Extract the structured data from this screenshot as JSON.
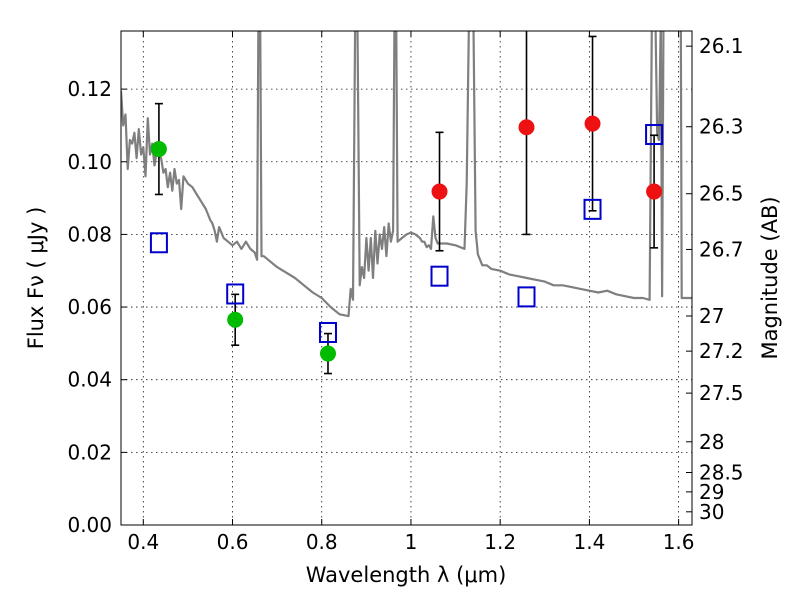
{
  "chart_data": {
    "type": "scatter",
    "xlabel": "Wavelength  λ (μm)",
    "ylabel": "Flux  Fν  ( μJy )",
    "ylabel_right": "Magnitude (AB)",
    "xlim": [
      0.35,
      1.63
    ],
    "ylim": [
      0.0,
      0.136
    ],
    "grid": true,
    "x_ticks": [
      {
        "value": 0.4,
        "label": "0.4"
      },
      {
        "value": 0.6,
        "label": "0.6"
      },
      {
        "value": 0.8,
        "label": "0.8"
      },
      {
        "value": 1.0,
        "label": "1"
      },
      {
        "value": 1.2,
        "label": "1.2"
      },
      {
        "value": 1.4,
        "label": "1.4"
      },
      {
        "value": 1.6,
        "label": "1.6"
      }
    ],
    "y_ticks": [
      {
        "value": 0.0,
        "label": "0.00"
      },
      {
        "value": 0.02,
        "label": "0.02"
      },
      {
        "value": 0.04,
        "label": "0.04"
      },
      {
        "value": 0.06,
        "label": "0.06"
      },
      {
        "value": 0.08,
        "label": "0.08"
      },
      {
        "value": 0.1,
        "label": "0.10"
      },
      {
        "value": 0.12,
        "label": "0.12"
      }
    ],
    "mag_ticks": [
      {
        "value": 26.1,
        "label": "26.1"
      },
      {
        "value": 26.3,
        "label": "26.3"
      },
      {
        "value": 26.5,
        "label": "26.5"
      },
      {
        "value": 26.7,
        "label": "26.7"
      },
      {
        "value": 27.0,
        "label": "27"
      },
      {
        "value": 27.2,
        "label": "27.2"
      },
      {
        "value": 27.5,
        "label": "27.5"
      },
      {
        "value": 28.0,
        "label": "28"
      },
      {
        "value": 28.5,
        "label": "28.5"
      },
      {
        "value": 29.0,
        "label": "29"
      },
      {
        "value": 30.0,
        "label": "30"
      }
    ],
    "series": [
      {
        "kind": "points",
        "marker": "circle",
        "color": "#00bb00",
        "points": [
          {
            "x": 0.435,
            "y": 0.1035,
            "err": 0.0125
          },
          {
            "x": 0.606,
            "y": 0.0565,
            "err": 0.007
          },
          {
            "x": 0.814,
            "y": 0.0472,
            "err": 0.0055
          }
        ]
      },
      {
        "kind": "points",
        "marker": "circle",
        "color": "#ee1111",
        "points": [
          {
            "x": 1.064,
            "y": 0.0918,
            "err": 0.0163
          },
          {
            "x": 1.259,
            "y": 0.1095,
            "err": 0.0295
          },
          {
            "x": 1.407,
            "y": 0.1105,
            "err": 0.024
          },
          {
            "x": 1.545,
            "y": 0.0918,
            "err": 0.0155
          }
        ]
      },
      {
        "kind": "points",
        "marker": "open-square",
        "color": "#0000cc",
        "points": [
          {
            "x": 0.435,
            "y": 0.0777
          },
          {
            "x": 0.606,
            "y": 0.0636
          },
          {
            "x": 0.814,
            "y": 0.053
          },
          {
            "x": 1.064,
            "y": 0.0685
          },
          {
            "x": 1.259,
            "y": 0.0628
          },
          {
            "x": 1.407,
            "y": 0.0869
          },
          {
            "x": 1.545,
            "y": 0.1075
          }
        ]
      },
      {
        "kind": "line",
        "color": "#7f7f7f",
        "points": [
          [
            0.35,
            0.1195
          ],
          [
            0.355,
            0.11
          ],
          [
            0.36,
            0.113
          ],
          [
            0.365,
            0.098
          ],
          [
            0.37,
            0.106
          ],
          [
            0.375,
            0.105
          ],
          [
            0.38,
            0.108
          ],
          [
            0.385,
            0.101
          ],
          [
            0.39,
            0.109
          ],
          [
            0.395,
            0.102
          ],
          [
            0.4,
            0.104
          ],
          [
            0.405,
            0.096
          ],
          [
            0.41,
            0.112
          ],
          [
            0.415,
            0.102
          ],
          [
            0.42,
            0.105
          ],
          [
            0.425,
            0.099
          ],
          [
            0.43,
            0.103
          ],
          [
            0.44,
            0.101
          ],
          [
            0.445,
            0.097
          ],
          [
            0.45,
            0.098
          ],
          [
            0.455,
            0.093
          ],
          [
            0.46,
            0.097
          ],
          [
            0.465,
            0.092
          ],
          [
            0.47,
            0.098
          ],
          [
            0.475,
            0.094
          ],
          [
            0.48,
            0.095
          ],
          [
            0.485,
            0.087
          ],
          [
            0.49,
            0.096
          ],
          [
            0.5,
            0.094
          ],
          [
            0.51,
            0.093
          ],
          [
            0.52,
            0.091
          ],
          [
            0.53,
            0.089
          ],
          [
            0.54,
            0.087
          ],
          [
            0.55,
            0.084
          ],
          [
            0.555,
            0.083
          ],
          [
            0.56,
            0.081
          ],
          [
            0.565,
            0.078
          ],
          [
            0.57,
            0.082
          ],
          [
            0.58,
            0.079
          ],
          [
            0.59,
            0.078
          ],
          [
            0.6,
            0.077
          ],
          [
            0.61,
            0.078
          ],
          [
            0.62,
            0.076
          ],
          [
            0.63,
            0.078
          ],
          [
            0.64,
            0.076
          ],
          [
            0.65,
            0.075
          ],
          [
            0.655,
            0.073
          ],
          [
            0.658,
            0.14
          ],
          [
            0.662,
            0.14
          ],
          [
            0.665,
            0.074
          ],
          [
            0.67,
            0.074
          ],
          [
            0.68,
            0.073
          ],
          [
            0.7,
            0.071
          ],
          [
            0.72,
            0.0695
          ],
          [
            0.74,
            0.068
          ],
          [
            0.76,
            0.066
          ],
          [
            0.78,
            0.064
          ],
          [
            0.8,
            0.0625
          ],
          [
            0.82,
            0.06
          ],
          [
            0.84,
            0.058
          ],
          [
            0.86,
            0.0575
          ],
          [
            0.865,
            0.065
          ],
          [
            0.87,
            0.062
          ],
          [
            0.875,
            0.14
          ],
          [
            0.88,
            0.14
          ],
          [
            0.885,
            0.066
          ],
          [
            0.89,
            0.071
          ],
          [
            0.895,
            0.068
          ],
          [
            0.9,
            0.079
          ],
          [
            0.905,
            0.07
          ],
          [
            0.91,
            0.079
          ],
          [
            0.915,
            0.068
          ],
          [
            0.92,
            0.081
          ],
          [
            0.925,
            0.072
          ],
          [
            0.93,
            0.08
          ],
          [
            0.935,
            0.076
          ],
          [
            0.94,
            0.082
          ],
          [
            0.945,
            0.074
          ],
          [
            0.95,
            0.083
          ],
          [
            0.955,
            0.078
          ],
          [
            0.96,
            0.081
          ],
          [
            0.963,
            0.14
          ],
          [
            0.967,
            0.14
          ],
          [
            0.97,
            0.078
          ],
          [
            0.98,
            0.079
          ],
          [
            0.99,
            0.08
          ],
          [
            1.0,
            0.0805
          ],
          [
            1.01,
            0.08
          ],
          [
            1.02,
            0.079
          ],
          [
            1.025,
            0.078
          ],
          [
            1.03,
            0.078
          ],
          [
            1.035,
            0.0765
          ],
          [
            1.04,
            0.077
          ],
          [
            1.045,
            0.076
          ],
          [
            1.05,
            0.085
          ],
          [
            1.055,
            0.079
          ],
          [
            1.06,
            0.0775
          ],
          [
            1.08,
            0.0775
          ],
          [
            1.1,
            0.077
          ],
          [
            1.12,
            0.076
          ],
          [
            1.125,
            0.094
          ],
          [
            1.13,
            0.14
          ],
          [
            1.14,
            0.14
          ],
          [
            1.145,
            0.081
          ],
          [
            1.15,
            0.0745
          ],
          [
            1.16,
            0.0715
          ],
          [
            1.17,
            0.0715
          ],
          [
            1.18,
            0.0705
          ],
          [
            1.2,
            0.07
          ],
          [
            1.22,
            0.069
          ],
          [
            1.24,
            0.0685
          ],
          [
            1.26,
            0.068
          ],
          [
            1.28,
            0.0675
          ],
          [
            1.3,
            0.067
          ],
          [
            1.32,
            0.066
          ],
          [
            1.34,
            0.066
          ],
          [
            1.36,
            0.0655
          ],
          [
            1.38,
            0.065
          ],
          [
            1.4,
            0.0645
          ],
          [
            1.42,
            0.064
          ],
          [
            1.44,
            0.0645
          ],
          [
            1.46,
            0.0635
          ],
          [
            1.48,
            0.063
          ],
          [
            1.5,
            0.0625
          ],
          [
            1.52,
            0.0625
          ],
          [
            1.535,
            0.062
          ],
          [
            1.54,
            0.14
          ],
          [
            1.548,
            0.14
          ],
          [
            1.552,
            0.1075
          ],
          [
            1.556,
            0.106
          ],
          [
            1.56,
            0.14
          ],
          [
            1.563,
            0.063
          ],
          [
            1.566,
            0.14
          ],
          [
            1.572,
            0.14
          ],
          [
            1.58,
            0.14
          ],
          [
            1.59,
            0.14
          ],
          [
            1.6,
            0.14
          ],
          [
            1.605,
            0.14
          ],
          [
            1.607,
            0.0625
          ],
          [
            1.63,
            0.0625
          ]
        ]
      }
    ]
  }
}
